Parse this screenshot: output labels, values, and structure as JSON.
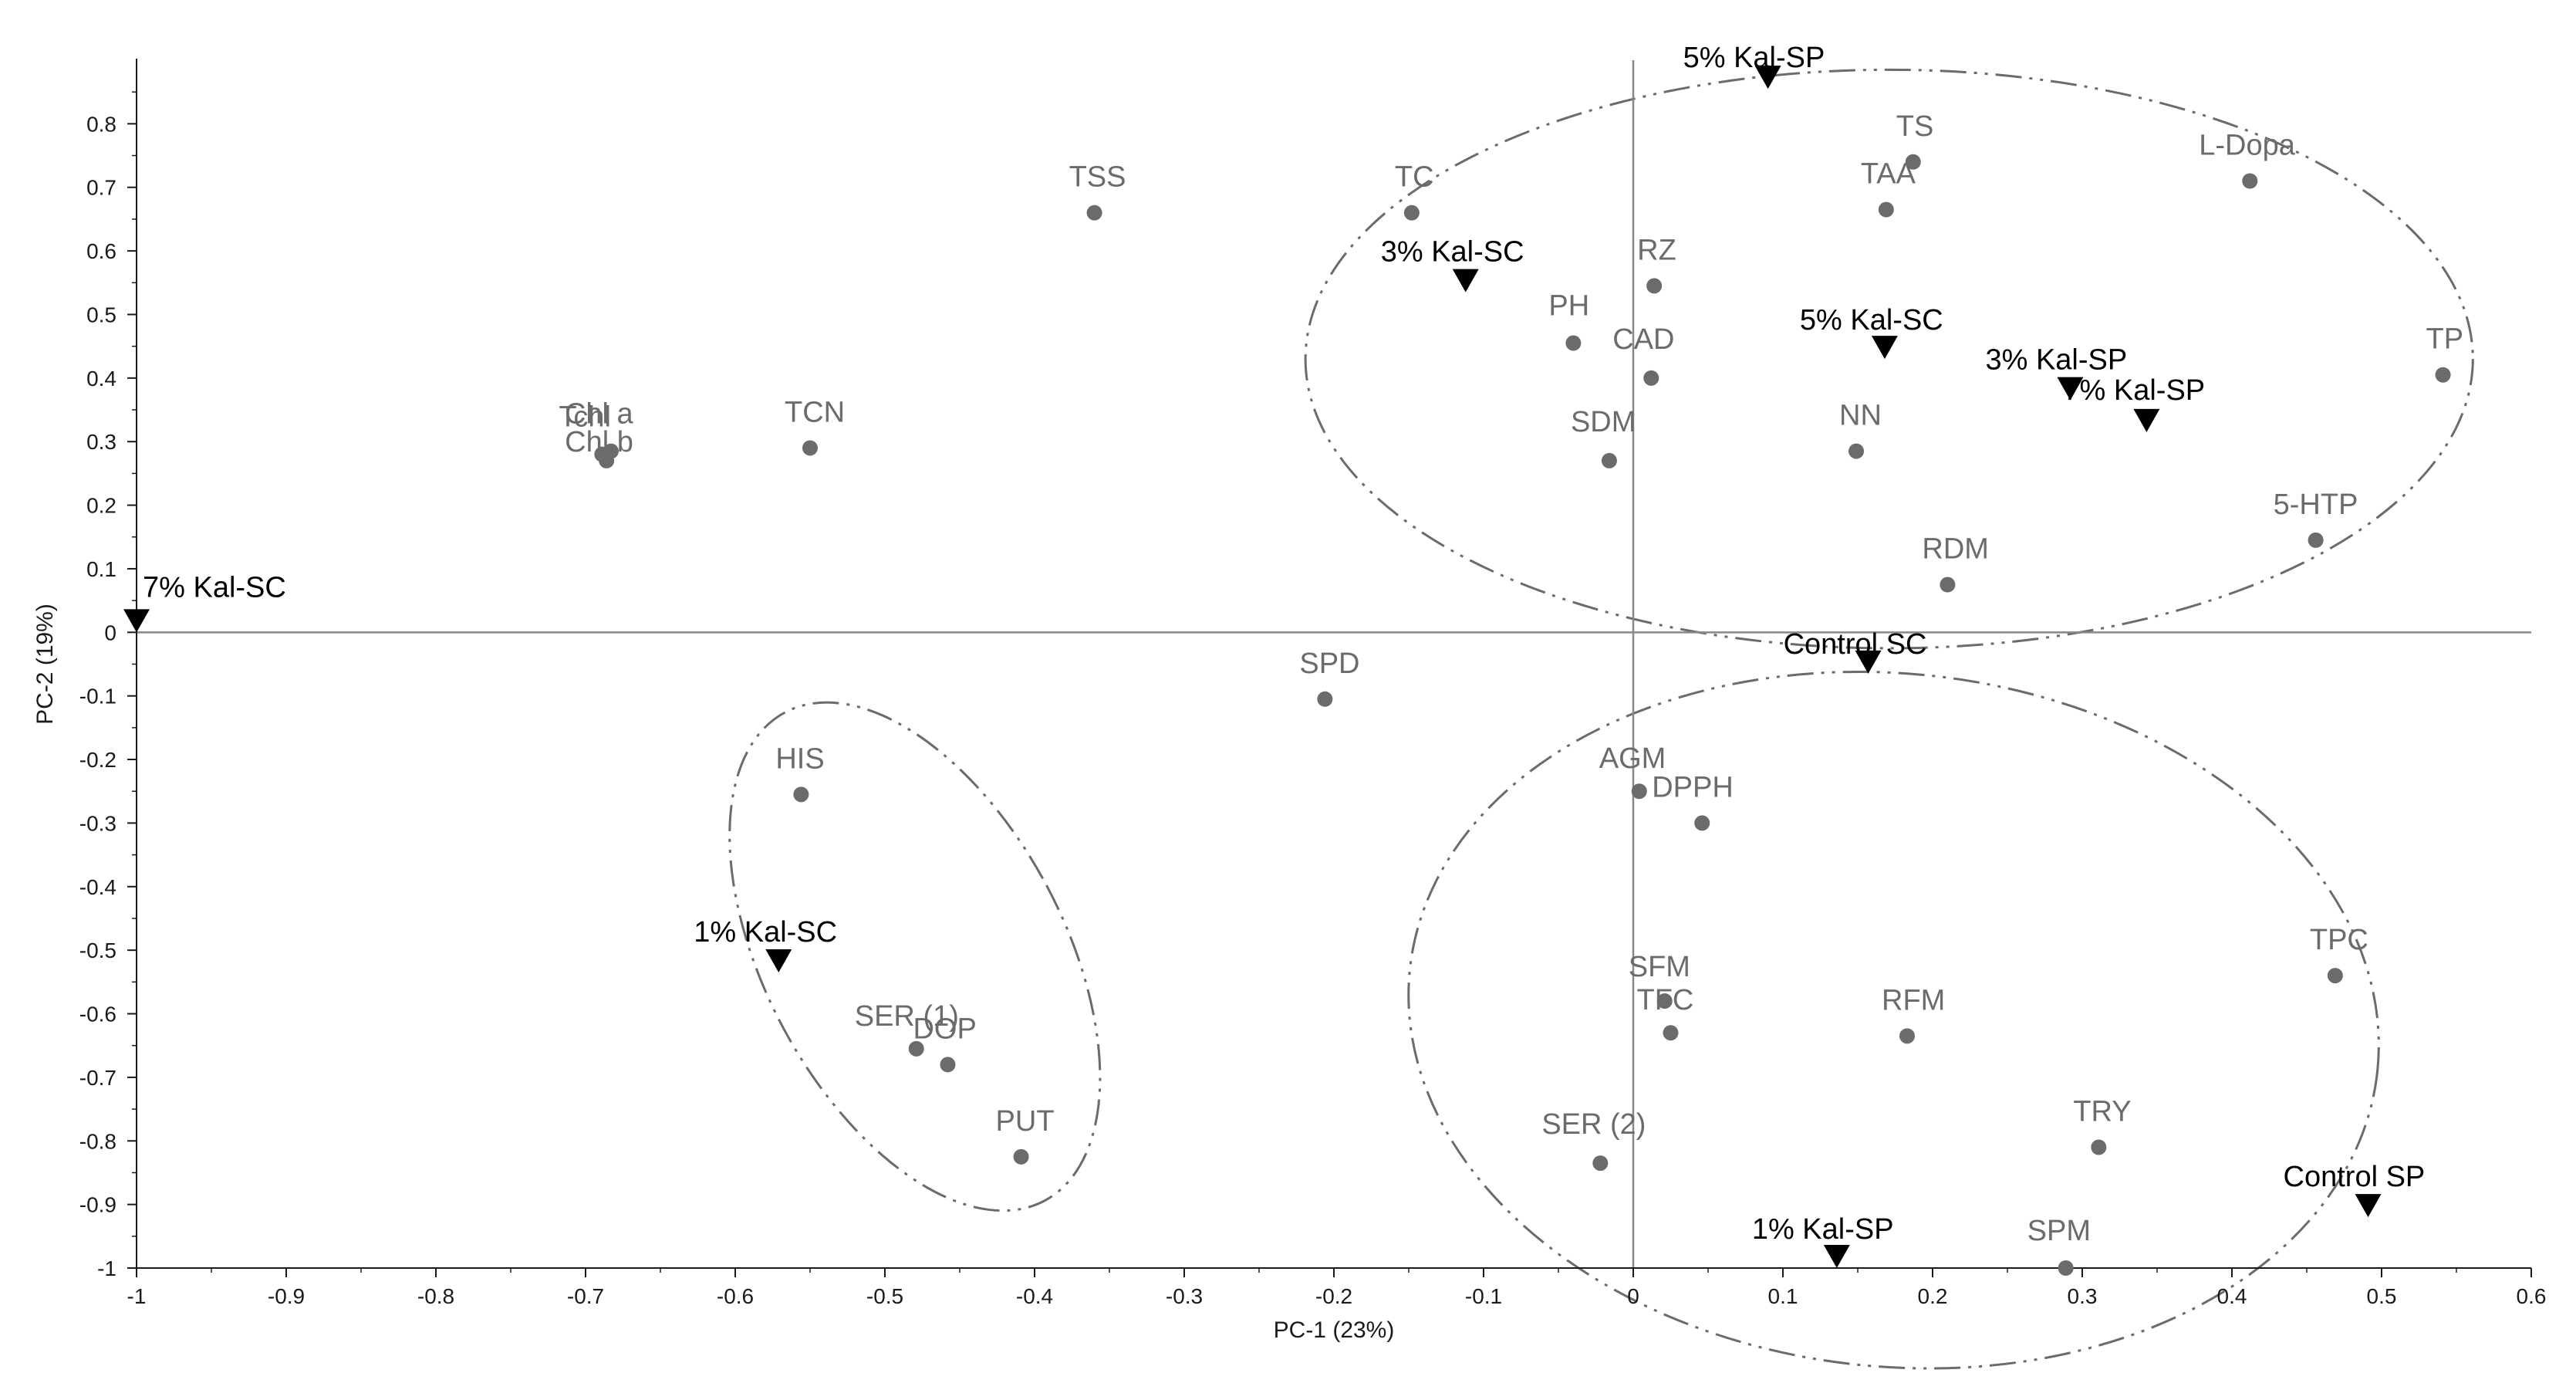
{
  "chart_data": {
    "type": "scatter",
    "xlabel": "PC-1 (23%)",
    "ylabel": "PC-2 (19%)",
    "xlim": [
      -1,
      0.6
    ],
    "ylim": [
      -1,
      0.9
    ],
    "x_ticks": [
      "-1",
      "-0.9",
      "-0.8",
      "-0.7",
      "-0.6",
      "-0.5",
      "-0.4",
      "-0.3",
      "-0.2",
      "-0.1",
      "0",
      "0.1",
      "0.2",
      "0.3",
      "0.4",
      "0.5",
      "0.6"
    ],
    "y_ticks": [
      "-1",
      "-0.9",
      "-0.8",
      "-0.7",
      "-0.6",
      "-0.5",
      "-0.4",
      "-0.3",
      "-0.2",
      "-0.1",
      "0",
      "0.1",
      "0.2",
      "0.3",
      "0.4",
      "0.5",
      "0.6",
      "0.7",
      "0.8"
    ],
    "grid": false,
    "reference_lines": {
      "x": 0,
      "y": 0
    },
    "colors": {
      "variables": "#6b6b6b",
      "treatments": "#000000",
      "axes": "#1a1a1a",
      "reference_lines": "#888888",
      "ellipses": "#6b6b6b"
    },
    "variables": [
      {
        "label": "TSS",
        "x": -0.36,
        "y": 0.66
      },
      {
        "label": "TC",
        "x": -0.148,
        "y": 0.66
      },
      {
        "label": "TCN",
        "x": -0.55,
        "y": 0.29
      },
      {
        "label": "Chl a",
        "x": -0.683,
        "y": 0.285
      },
      {
        "label": "Chl b",
        "x": -0.686,
        "y": 0.27
      },
      {
        "label": "Tchl",
        "x": -0.689,
        "y": 0.28
      },
      {
        "label": "RZ",
        "x": 0.014,
        "y": 0.545
      },
      {
        "label": "PH",
        "x": -0.04,
        "y": 0.455
      },
      {
        "label": "CAD",
        "x": 0.012,
        "y": 0.4
      },
      {
        "label": "SDM",
        "x": -0.016,
        "y": 0.27
      },
      {
        "label": "TS",
        "x": 0.187,
        "y": 0.74
      },
      {
        "label": "TAA",
        "x": 0.169,
        "y": 0.665
      },
      {
        "label": "L-Dopa",
        "x": 0.412,
        "y": 0.71
      },
      {
        "label": "TP",
        "x": 0.541,
        "y": 0.405
      },
      {
        "label": "NN",
        "x": 0.149,
        "y": 0.285
      },
      {
        "label": "5-HTP",
        "x": 0.456,
        "y": 0.145
      },
      {
        "label": "RDM",
        "x": 0.21,
        "y": 0.075
      },
      {
        "label": "SPD",
        "x": -0.206,
        "y": -0.105
      },
      {
        "label": "HIS",
        "x": -0.556,
        "y": -0.255
      },
      {
        "label": "SER (1)",
        "x": -0.479,
        "y": -0.655
      },
      {
        "label": "DOP",
        "x": -0.458,
        "y": -0.68
      },
      {
        "label": "PUT",
        "x": -0.409,
        "y": -0.825
      },
      {
        "label": "AGM",
        "x": 0.004,
        "y": -0.25
      },
      {
        "label": "DPPH",
        "x": 0.046,
        "y": -0.3
      },
      {
        "label": "SFM",
        "x": 0.021,
        "y": -0.58
      },
      {
        "label": "TFC",
        "x": 0.025,
        "y": -0.63
      },
      {
        "label": "RFM",
        "x": 0.183,
        "y": -0.635
      },
      {
        "label": "SER (2)",
        "x": -0.022,
        "y": -0.835
      },
      {
        "label": "TPC",
        "x": 0.469,
        "y": -0.54
      },
      {
        "label": "TRY",
        "x": 0.311,
        "y": -0.81
      },
      {
        "label": "SPM",
        "x": 0.289,
        "y": -1.0
      }
    ],
    "treatments": [
      {
        "label": "5% Kal-SP",
        "x": 0.09,
        "y": 0.855
      },
      {
        "label": "3% Kal-SC",
        "x": -0.112,
        "y": 0.535
      },
      {
        "label": "5% Kal-SC",
        "x": 0.168,
        "y": 0.43
      },
      {
        "label": "3% Kal-SP",
        "x": 0.292,
        "y": 0.365
      },
      {
        "label": "7% Kal-SP",
        "x": 0.343,
        "y": 0.315
      },
      {
        "label": "7% Kal-SC",
        "x": -1.0,
        "y": 0.0
      },
      {
        "label": "Control SC",
        "x": 0.157,
        "y": -0.065
      },
      {
        "label": "1% Kal-SC",
        "x": -0.571,
        "y": -0.535
      },
      {
        "label": "Control SP",
        "x": 0.491,
        "y": -0.92
      },
      {
        "label": "1% Kal-SP",
        "x": 0.136,
        "y": -1.0
      }
    ],
    "ellipses": [
      {
        "cx": 0.171,
        "cy": 0.43,
        "rx": 0.39,
        "ry": 0.455,
        "rotate": 0
      },
      {
        "cx": -0.48,
        "cy": -0.51,
        "rx": 0.1,
        "ry": 0.435,
        "rotate": -28
      },
      {
        "cx": 0.174,
        "cy": -0.61,
        "rx": 0.325,
        "ry": 0.545,
        "rotate": 6
      }
    ]
  }
}
